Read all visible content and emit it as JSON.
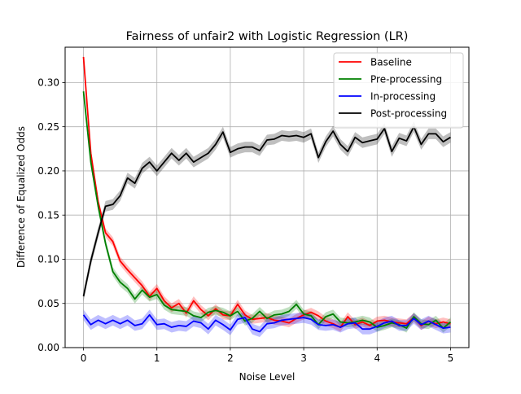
{
  "chart_data": {
    "type": "line",
    "title": "Fairness of unfair2 with Logistic Regression (LR)",
    "xlabel": "Noise Level",
    "ylabel": "Difference of Equalized Odds",
    "xlim": [
      -0.25,
      5.25
    ],
    "ylim": [
      0.0,
      0.34
    ],
    "xticks": [
      0,
      1,
      2,
      3,
      4,
      5
    ],
    "yticks": [
      0.0,
      0.05,
      0.1,
      0.15,
      0.2,
      0.25,
      0.3
    ],
    "xtick_labels": [
      "0",
      "1",
      "2",
      "3",
      "4",
      "5"
    ],
    "ytick_labels": [
      "0.00",
      "0.05",
      "0.10",
      "0.15",
      "0.20",
      "0.25",
      "0.30"
    ],
    "grid": true,
    "legend_position": "top-right",
    "x": [
      0,
      0.1,
      0.2,
      0.3,
      0.4,
      0.5,
      0.6,
      0.7,
      0.8,
      0.9,
      1.0,
      1.1,
      1.2,
      1.3,
      1.4,
      1.5,
      1.6,
      1.7,
      1.8,
      1.9,
      2.0,
      2.1,
      2.2,
      2.3,
      2.4,
      2.5,
      2.6,
      2.7,
      2.8,
      2.9,
      3.0,
      3.1,
      3.2,
      3.3,
      3.4,
      3.5,
      3.6,
      3.7,
      3.8,
      3.9,
      4.0,
      4.1,
      4.2,
      4.3,
      4.4,
      4.5,
      4.6,
      4.7,
      4.8,
      4.9,
      5.0
    ],
    "series": [
      {
        "name": "Baseline",
        "color": "#ff0000",
        "band": 0.005,
        "values": [
          0.329,
          0.22,
          0.165,
          0.13,
          0.12,
          0.098,
          0.088,
          0.079,
          0.07,
          0.058,
          0.067,
          0.053,
          0.045,
          0.05,
          0.039,
          0.053,
          0.043,
          0.036,
          0.044,
          0.037,
          0.036,
          0.049,
          0.037,
          0.032,
          0.033,
          0.034,
          0.031,
          0.03,
          0.028,
          0.033,
          0.037,
          0.04,
          0.036,
          0.03,
          0.027,
          0.023,
          0.035,
          0.026,
          0.029,
          0.025,
          0.03,
          0.031,
          0.029,
          0.028,
          0.027,
          0.034,
          0.025,
          0.03,
          0.027,
          0.029,
          0.027
        ]
      },
      {
        "name": "Pre-processing",
        "color": "#008000",
        "band": 0.005,
        "values": [
          0.29,
          0.21,
          0.16,
          0.118,
          0.086,
          0.074,
          0.067,
          0.055,
          0.065,
          0.057,
          0.06,
          0.048,
          0.043,
          0.042,
          0.041,
          0.036,
          0.034,
          0.04,
          0.042,
          0.04,
          0.036,
          0.041,
          0.03,
          0.033,
          0.041,
          0.033,
          0.037,
          0.038,
          0.041,
          0.049,
          0.038,
          0.036,
          0.026,
          0.035,
          0.038,
          0.029,
          0.028,
          0.029,
          0.031,
          0.029,
          0.023,
          0.025,
          0.028,
          0.026,
          0.022,
          0.035,
          0.027,
          0.026,
          0.031,
          0.022,
          0.029
        ]
      },
      {
        "name": "In-processing",
        "color": "#0000ff",
        "band": 0.006,
        "values": [
          0.037,
          0.026,
          0.031,
          0.027,
          0.031,
          0.027,
          0.031,
          0.025,
          0.027,
          0.037,
          0.026,
          0.027,
          0.023,
          0.025,
          0.024,
          0.03,
          0.028,
          0.021,
          0.031,
          0.026,
          0.02,
          0.032,
          0.034,
          0.021,
          0.018,
          0.027,
          0.028,
          0.031,
          0.032,
          0.033,
          0.034,
          0.032,
          0.026,
          0.025,
          0.026,
          0.023,
          0.027,
          0.028,
          0.021,
          0.021,
          0.024,
          0.028,
          0.03,
          0.025,
          0.025,
          0.033,
          0.026,
          0.03,
          0.026,
          0.022,
          0.023
        ]
      },
      {
        "name": "Post-processing",
        "color": "#000000",
        "band": 0.006,
        "values": [
          0.058,
          0.098,
          0.13,
          0.16,
          0.162,
          0.172,
          0.192,
          0.186,
          0.203,
          0.21,
          0.2,
          0.21,
          0.22,
          0.212,
          0.22,
          0.21,
          0.215,
          0.22,
          0.23,
          0.244,
          0.221,
          0.225,
          0.227,
          0.227,
          0.223,
          0.235,
          0.236,
          0.24,
          0.239,
          0.24,
          0.238,
          0.242,
          0.215,
          0.233,
          0.245,
          0.23,
          0.222,
          0.238,
          0.232,
          0.234,
          0.236,
          0.248,
          0.222,
          0.237,
          0.234,
          0.25,
          0.23,
          0.242,
          0.242,
          0.233,
          0.238
        ]
      }
    ]
  }
}
